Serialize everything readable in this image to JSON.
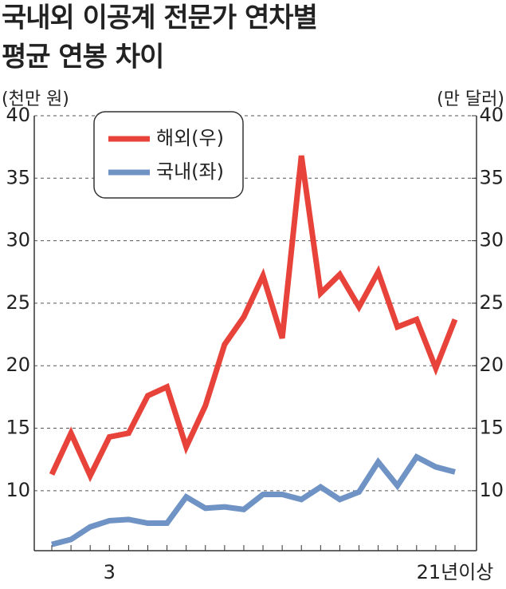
{
  "chart_data": {
    "type": "line",
    "title": [
      "국내외 이공계 전문가 연차별",
      "평균 연봉 차이"
    ],
    "y_label": "(천만 원)",
    "y2_label": "(만 달러)",
    "categories": [
      null,
      null,
      null,
      "3",
      null,
      null,
      null,
      null,
      null,
      null,
      null,
      null,
      null,
      null,
      null,
      null,
      null,
      null,
      null,
      null,
      null,
      "21년이상"
    ],
    "series": [
      {
        "name": "해외(우)",
        "color": "#e8433a",
        "axis": "y2",
        "values": [
          11.3,
          14.6,
          11.2,
          14.3,
          14.6,
          17.6,
          18.3,
          13.5,
          16.8,
          21.7,
          23.9,
          27.2,
          22.2,
          36.8,
          25.8,
          27.3,
          24.7,
          27.5,
          23.1,
          23.7,
          19.8,
          23.7
        ]
      },
      {
        "name": "국내(좌)",
        "color": "#6f93c4",
        "values": [
          5.7,
          6.1,
          7.1,
          7.6,
          7.7,
          7.4,
          7.4,
          9.5,
          8.6,
          8.7,
          8.5,
          9.7,
          9.7,
          9.3,
          10.3,
          9.3,
          9.9,
          12.3,
          10.4,
          12.7,
          11.9,
          11.5
        ]
      }
    ],
    "ylim": [
      5.2,
      40
    ],
    "yticks": [
      10,
      15,
      20,
      25,
      30,
      35,
      40
    ],
    "y2lim": [
      5.2,
      40
    ],
    "y2ticks": [
      10,
      15,
      20,
      25,
      30,
      35,
      40
    ],
    "grid": true,
    "legend": "upper left"
  }
}
